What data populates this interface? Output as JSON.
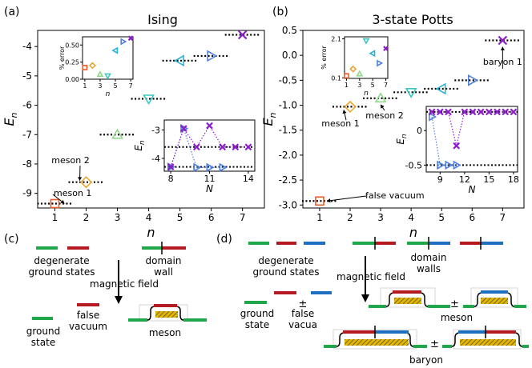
{
  "panels": {
    "a": {
      "letter": "(a)",
      "title": "Ising"
    },
    "b": {
      "letter": "(b)",
      "title": "3-state Potts"
    },
    "c": {
      "letter": "(c)"
    },
    "d": {
      "letter": "(d)"
    }
  },
  "axes": {
    "xlabel": "n",
    "ylabel": "E_n"
  },
  "colors": {
    "n1": "#ee5a24",
    "n2": "#e8a530",
    "n3": "#8fd88a",
    "n4": "#3cc7c1",
    "n5": "#2ab2d3",
    "n6": "#4f7fe0",
    "n7": "#8a1fc9",
    "green": "#1ea84a",
    "red": "#b51a20",
    "blue": "#1e6fc0",
    "hatch": "#e0b400"
  },
  "chart_data": [
    {
      "type": "scatter",
      "panel": "a",
      "title": "Ising",
      "xlabel": "n",
      "ylabel": "E_n",
      "xlim": [
        0.45,
        7.7
      ],
      "ylim": [
        -9.5,
        -3.45
      ],
      "x_ticks": [
        1,
        2,
        3,
        4,
        5,
        6,
        7
      ],
      "y_ticks": [
        -9,
        -8,
        -7,
        -6,
        -5,
        -4
      ],
      "points": [
        {
          "n": 1,
          "E": -9.35,
          "marker": "square"
        },
        {
          "n": 2,
          "E": -8.62,
          "marker": "diamond"
        },
        {
          "n": 3,
          "E": -7.0,
          "marker": "triangle-up"
        },
        {
          "n": 4,
          "E": -5.78,
          "marker": "triangle-down"
        },
        {
          "n": 5,
          "E": -4.48,
          "marker": "triangle-left"
        },
        {
          "n": 6,
          "E": -4.32,
          "marker": "triangle-right"
        },
        {
          "n": 7,
          "E": -3.6,
          "marker": "x"
        }
      ],
      "annotations": [
        "meson 1",
        "meson 2"
      ],
      "insets": [
        {
          "xlabel": "n",
          "ylabel": "% error",
          "xlim": [
            0.7,
            7.3
          ],
          "ylim": [
            0,
            0.62
          ],
          "x_ticks": [
            1,
            3,
            5,
            7
          ],
          "y_ticks": [
            0.0,
            0.25,
            0.5
          ],
          "points": [
            {
              "n": 1,
              "v": 0.17
            },
            {
              "n": 2,
              "v": 0.2
            },
            {
              "n": 3,
              "v": 0.07
            },
            {
              "n": 4,
              "v": 0.05
            },
            {
              "n": 5,
              "v": 0.42
            },
            {
              "n": 6,
              "v": 0.55
            },
            {
              "n": 7,
              "v": 0.6
            }
          ]
        },
        {
          "xlabel": "N",
          "ylabel": "E_n",
          "xlim": [
            7.5,
            14.5
          ],
          "ylim": [
            -4.45,
            -2.65
          ],
          "x_ticks": [
            8,
            11,
            14
          ],
          "y_ticks": [
            -4,
            -3
          ],
          "reference_levels": [
            -3.6,
            -4.3
          ],
          "series": [
            {
              "name": "n=6",
              "marker": "triangle-right",
              "N": [
                8,
                9,
                10,
                11,
                12
              ],
              "E": [
                -4.3,
                -2.95,
                -4.32,
                -4.32,
                -4.32
              ]
            },
            {
              "name": "n=7",
              "marker": "x",
              "N": [
                8,
                9,
                10,
                11,
                12,
                13,
                14
              ],
              "E": [
                -4.3,
                -2.95,
                -3.6,
                -2.85,
                -3.6,
                -3.6,
                -3.6
              ]
            }
          ]
        }
      ]
    },
    {
      "type": "scatter",
      "panel": "b",
      "title": "3-state Potts",
      "xlabel": "n",
      "ylabel": "E_n",
      "xlim": [
        0.45,
        7.7
      ],
      "ylim": [
        -3.06,
        0.5
      ],
      "x_ticks": [
        1,
        2,
        3,
        4,
        5,
        6,
        7
      ],
      "y_ticks": [
        -3.0,
        -2.5,
        -2.0,
        -1.5,
        -1.0,
        -0.5,
        0.0,
        0.5
      ],
      "points": [
        {
          "n": 1,
          "E": -2.92,
          "marker": "square"
        },
        {
          "n": 2,
          "E": -1.03,
          "marker": "diamond"
        },
        {
          "n": 3,
          "E": -0.86,
          "marker": "triangle-up"
        },
        {
          "n": 4,
          "E": -0.74,
          "marker": "triangle-down"
        },
        {
          "n": 5,
          "E": -0.67,
          "marker": "triangle-left"
        },
        {
          "n": 6,
          "E": -0.5,
          "marker": "triangle-right"
        },
        {
          "n": 7,
          "E": 0.3,
          "marker": "x"
        }
      ],
      "annotations": [
        "false vacuum",
        "meson 1",
        "meson 2",
        "baryon 1"
      ],
      "insets": [
        {
          "xlabel": "n",
          "ylabel": "% error",
          "xlim": [
            0.7,
            7.3
          ],
          "ylim": [
            0.07,
            2.2
          ],
          "x_ticks": [
            1,
            3,
            5,
            7
          ],
          "y_ticks": [
            0.1,
            2.1
          ],
          "points": [
            {
              "n": 1,
              "v": 0.2
            },
            {
              "n": 2,
              "v": 0.55
            },
            {
              "n": 3,
              "v": 0.3
            },
            {
              "n": 4,
              "v": 2.0
            },
            {
              "n": 5,
              "v": 1.35
            },
            {
              "n": 6,
              "v": 0.85
            },
            {
              "n": 7,
              "v": 1.6
            }
          ]
        },
        {
          "xlabel": "N",
          "ylabel": "E_n",
          "xlim": [
            7.3,
            18.5
          ],
          "ylim": [
            -0.6,
            0.35
          ],
          "x_ticks": [
            9,
            12,
            15,
            18
          ],
          "y_ticks": [
            -0.5,
            0.0
          ],
          "reference_levels": [
            0.27,
            -0.5
          ],
          "series": [
            {
              "name": "n=6",
              "marker": "triangle-right",
              "N": [
                8,
                9,
                10,
                11
              ],
              "E": [
                0.2,
                -0.5,
                -0.5,
                -0.5
              ]
            },
            {
              "name": "n=7",
              "marker": "x",
              "N": [
                8,
                9,
                10,
                11,
                12,
                13,
                14,
                15,
                16,
                17,
                18
              ],
              "E": [
                0.27,
                0.27,
                0.27,
                -0.22,
                0.27,
                0.27,
                0.27,
                0.27,
                0.27,
                0.27,
                0.27
              ]
            }
          ]
        }
      ]
    }
  ],
  "panel_c_labels": {
    "degenerate": "degenerate\nground states",
    "domain_wall": "domain\nwall",
    "field": "magnetic  field",
    "ground": "ground\nstate",
    "false_vacuum": "false\nvacuum",
    "meson": "meson"
  },
  "panel_d_labels": {
    "degenerate": "degenerate\nground states",
    "domain_walls": "domain\nwalls",
    "field": "magnetic  field",
    "ground": "ground\nstate",
    "pm": "±",
    "false_vacua": "false\nvacua",
    "meson": "meson",
    "baryon": "baryon"
  }
}
